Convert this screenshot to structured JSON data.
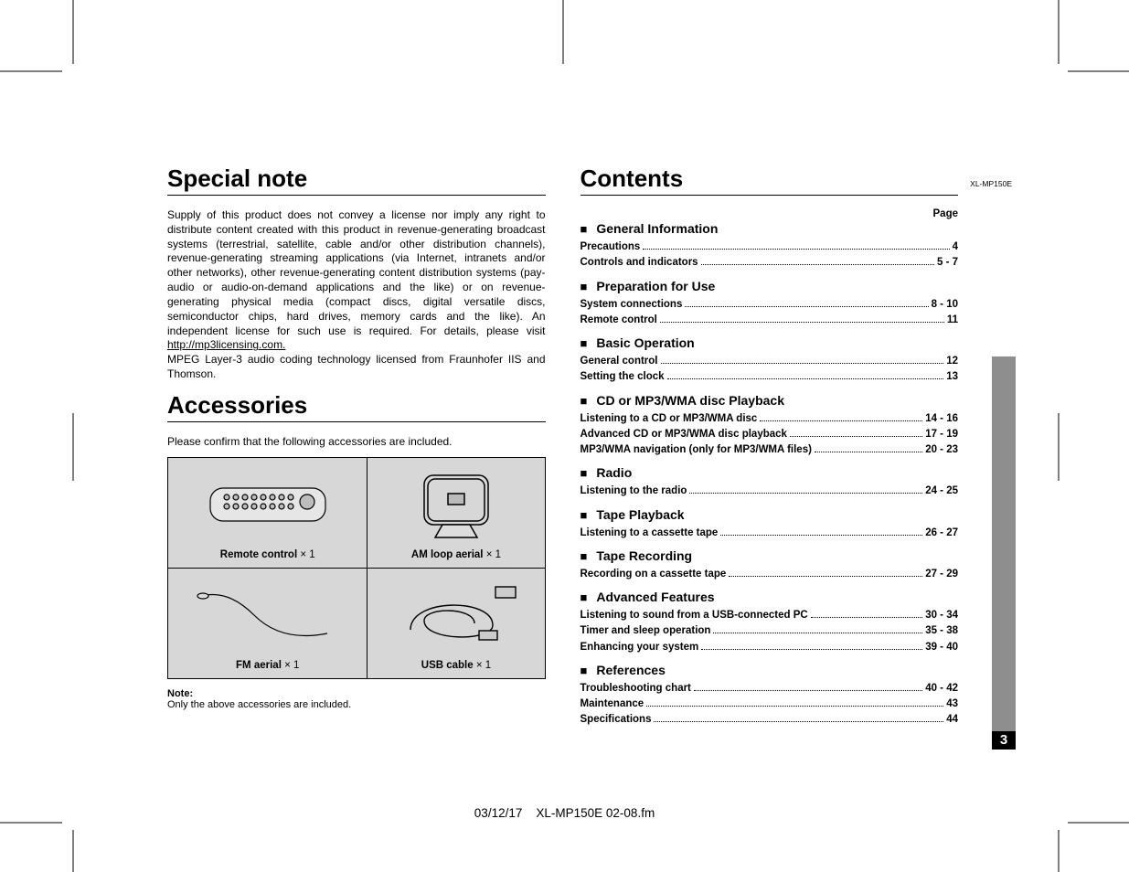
{
  "model_code": "XL-MP150E",
  "left": {
    "section1_title": "Special note",
    "body_p1": "Supply of this product does not convey a license nor imply any right to distribute content created with this product in revenue-generating broadcast systems (terrestrial, satellite, cable and/or other distribution channels), revenue-generating streaming applications (via Internet, intranets and/or other networks), other revenue-generating content distribution systems (pay-audio or audio-on-demand applications and the like) or on revenue-generating physical media (compact discs, digital versatile discs, semiconductor chips, hard drives, memory cards and the like). An independent license for such use is required. For details, please visit ",
    "body_link": "http://mp3licensing.com.",
    "body_p2": "MPEG Layer-3 audio coding technology licensed from Fraunhofer IIS and Thomson.",
    "section2_title": "Accessories",
    "acc_intro": "Please confirm that the following accessories are included.",
    "acc": {
      "remote": "Remote control",
      "am": "AM loop aerial",
      "fm": "FM aerial",
      "usb": "USB cable",
      "qty": " × 1"
    },
    "note_h": "Note:",
    "note_t": "Only the above accessories are included."
  },
  "right": {
    "title": "Contents",
    "page_label": "Page",
    "sections": [
      {
        "title": "General Information",
        "items": [
          {
            "label": "Precautions",
            "page": "4"
          },
          {
            "label": "Controls and indicators",
            "page": "5 - 7"
          }
        ]
      },
      {
        "title": "Preparation for Use",
        "items": [
          {
            "label": "System connections",
            "page": "8 - 10"
          },
          {
            "label": "Remote control",
            "page": "11"
          }
        ]
      },
      {
        "title": "Basic Operation",
        "items": [
          {
            "label": "General control",
            "page": "12"
          },
          {
            "label": "Setting the clock",
            "page": "13"
          }
        ]
      },
      {
        "title": "CD or MP3/WMA disc Playback",
        "items": [
          {
            "label": "Listening to a CD or MP3/WMA disc",
            "page": "14 - 16"
          },
          {
            "label": "Advanced CD or MP3/WMA disc playback",
            "page": "17 - 19"
          },
          {
            "label": "MP3/WMA navigation (only for MP3/WMA files)",
            "page": "20 - 23"
          }
        ]
      },
      {
        "title": "Radio",
        "items": [
          {
            "label": "Listening to the radio",
            "page": "24 - 25"
          }
        ]
      },
      {
        "title": "Tape Playback",
        "items": [
          {
            "label": "Listening to a cassette tape",
            "page": "26 - 27"
          }
        ]
      },
      {
        "title": "Tape Recording",
        "items": [
          {
            "label": "Recording on a cassette tape",
            "page": "27 - 29"
          }
        ]
      },
      {
        "title": "Advanced Features",
        "items": [
          {
            "label": "Listening to sound from a USB-connected PC",
            "page": "30 - 34"
          },
          {
            "label": "Timer and sleep operation",
            "page": "35 - 38"
          },
          {
            "label": "Enhancing your system",
            "page": "39 - 40"
          }
        ]
      },
      {
        "title": "References",
        "items": [
          {
            "label": "Troubleshooting chart",
            "page": "40 - 42"
          },
          {
            "label": "Maintenance",
            "page": "43"
          },
          {
            "label": "Specifications",
            "page": "44"
          }
        ]
      }
    ]
  },
  "side_tab": "General Information",
  "page_number": "3",
  "footer_date": "03/12/17",
  "footer_file": "XL-MP150E 02-08.fm",
  "colors": {
    "grey_cell": "#d7d7d7",
    "tab": "#8e8e8e"
  }
}
